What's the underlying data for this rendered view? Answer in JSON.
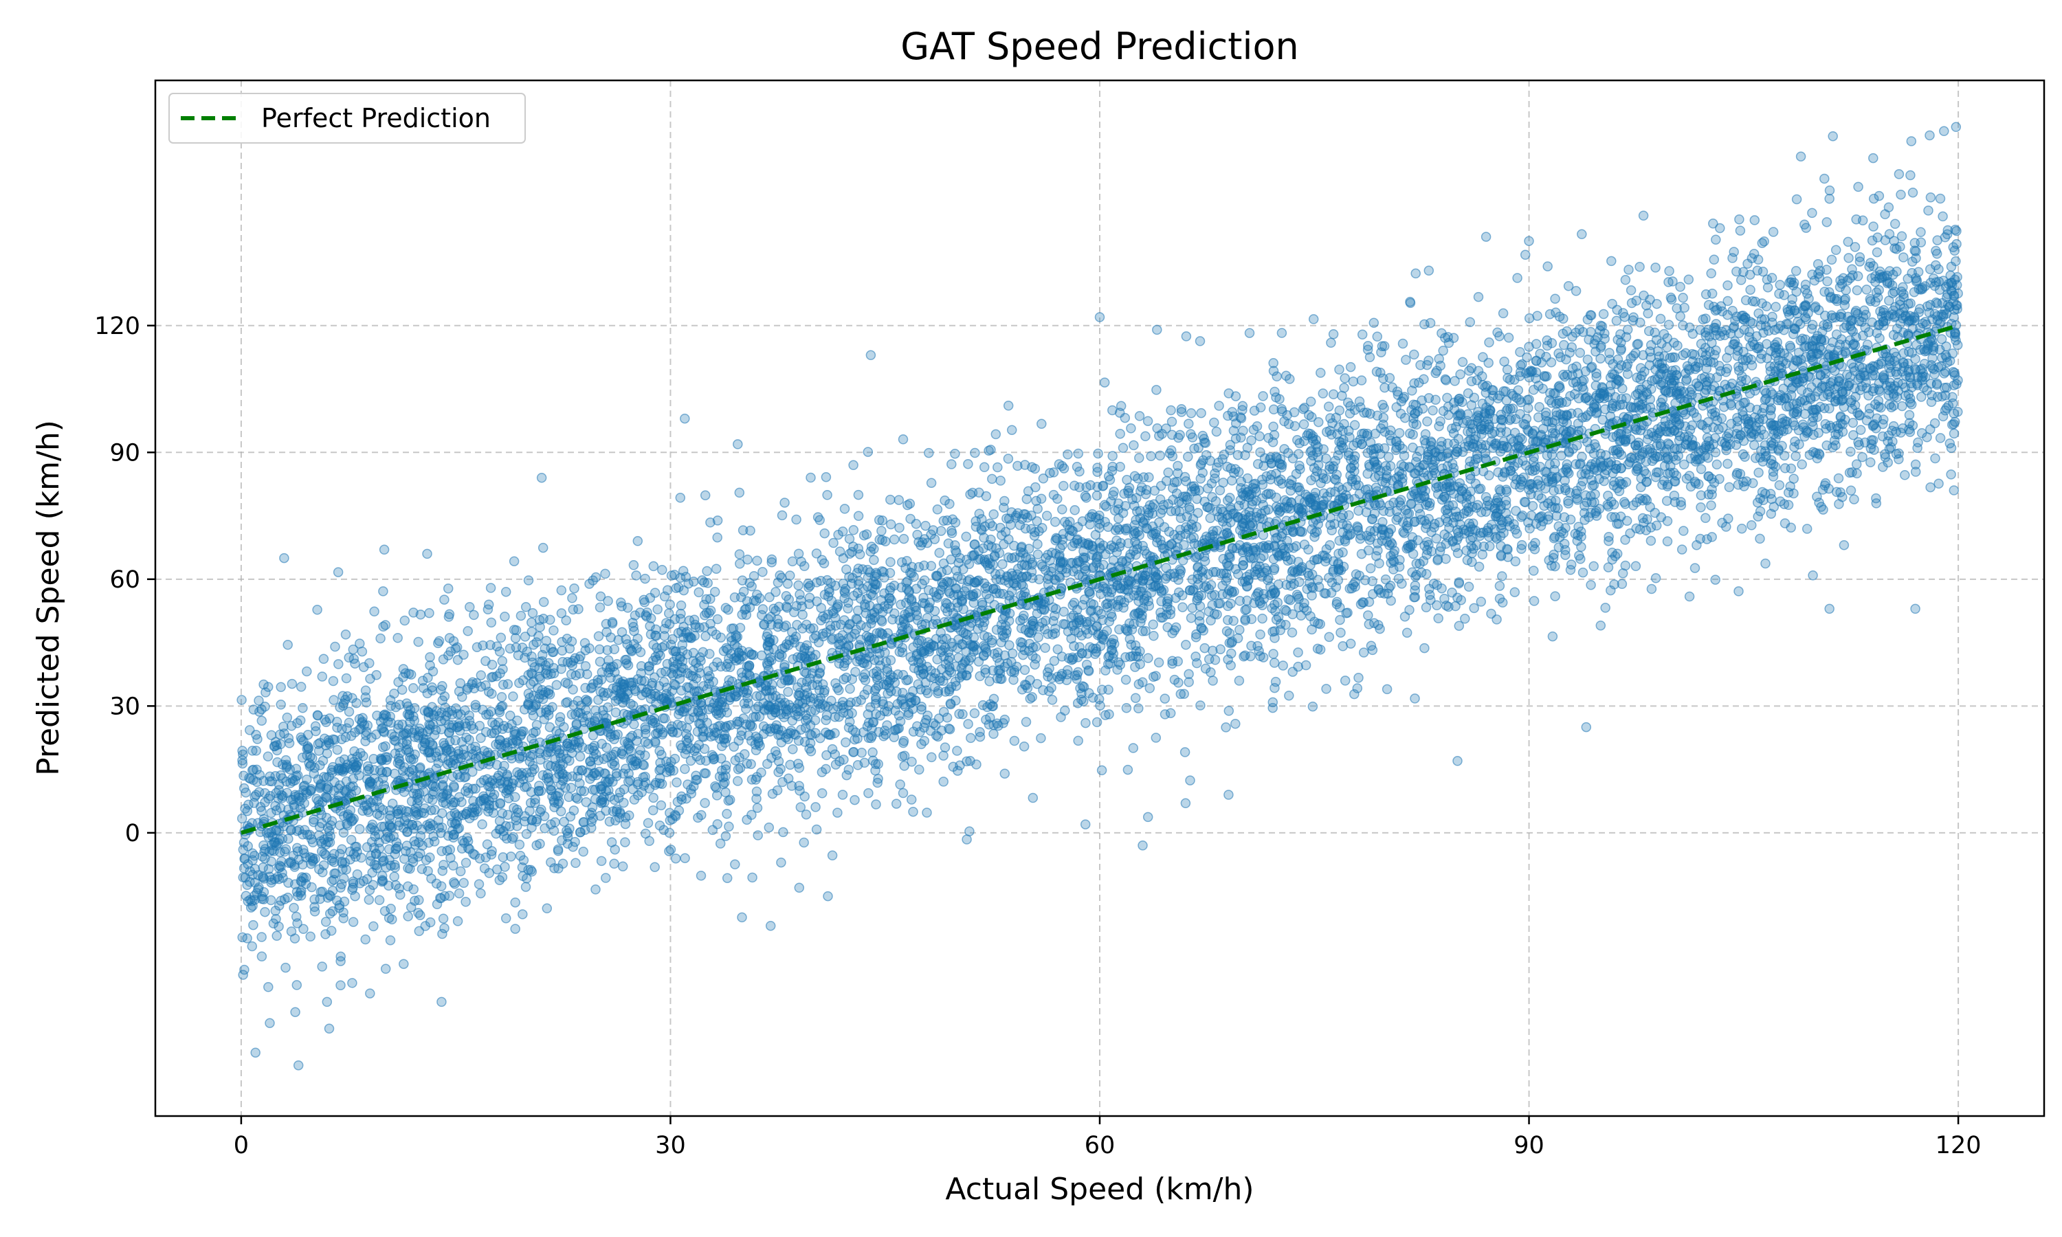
{
  "chart_data": {
    "type": "scatter",
    "title": "GAT Speed Prediction",
    "xlabel": "Actual Speed (km/h)",
    "ylabel": "Predicted Speed (km/h)",
    "xlim": [
      -6,
      126
    ],
    "ylim": [
      -67,
      178
    ],
    "xticks": [
      0,
      30,
      60,
      90,
      120
    ],
    "yticks": [
      0,
      30,
      60,
      90,
      120
    ],
    "grid": true,
    "legend_position": "top-left",
    "point_color": "#1f77b4",
    "series": [
      {
        "name": "",
        "kind": "scatter",
        "color": "#1f77b4",
        "trend": {
          "x": [
            0,
            30,
            60,
            90,
            120
          ],
          "y": [
            0,
            30,
            60,
            90,
            120
          ]
        },
        "spread_sd": 16,
        "point_count": 8000,
        "outliers": [
          [
            1,
            -52
          ],
          [
            4,
            -55
          ],
          [
            2,
            -45
          ],
          [
            6,
            -40
          ],
          [
            9,
            -38
          ],
          [
            14,
            -40
          ],
          [
            10,
            67
          ],
          [
            13,
            66
          ],
          [
            3,
            65
          ],
          [
            21,
            84
          ],
          [
            31,
            98
          ],
          [
            44,
            113
          ],
          [
            60,
            122
          ],
          [
            64,
            119
          ],
          [
            83,
            133
          ],
          [
            87,
            141
          ],
          [
            90,
            140
          ],
          [
            98,
            146
          ],
          [
            109,
            160
          ],
          [
            111,
            150
          ],
          [
            118,
            165
          ],
          [
            119,
            166
          ],
          [
            59,
            2
          ],
          [
            63,
            -3
          ],
          [
            66,
            7
          ],
          [
            69,
            9
          ],
          [
            94,
            25
          ],
          [
            85,
            17
          ],
          [
            37,
            -22
          ],
          [
            35,
            -20
          ],
          [
            39,
            -13
          ],
          [
            41,
            -15
          ],
          [
            111,
            53
          ],
          [
            117,
            53
          ]
        ]
      },
      {
        "name": "Perfect Prediction",
        "kind": "line",
        "style": "dashed",
        "color": "#007f00",
        "x": [
          0,
          120
        ],
        "y": [
          0,
          120
        ]
      }
    ]
  }
}
